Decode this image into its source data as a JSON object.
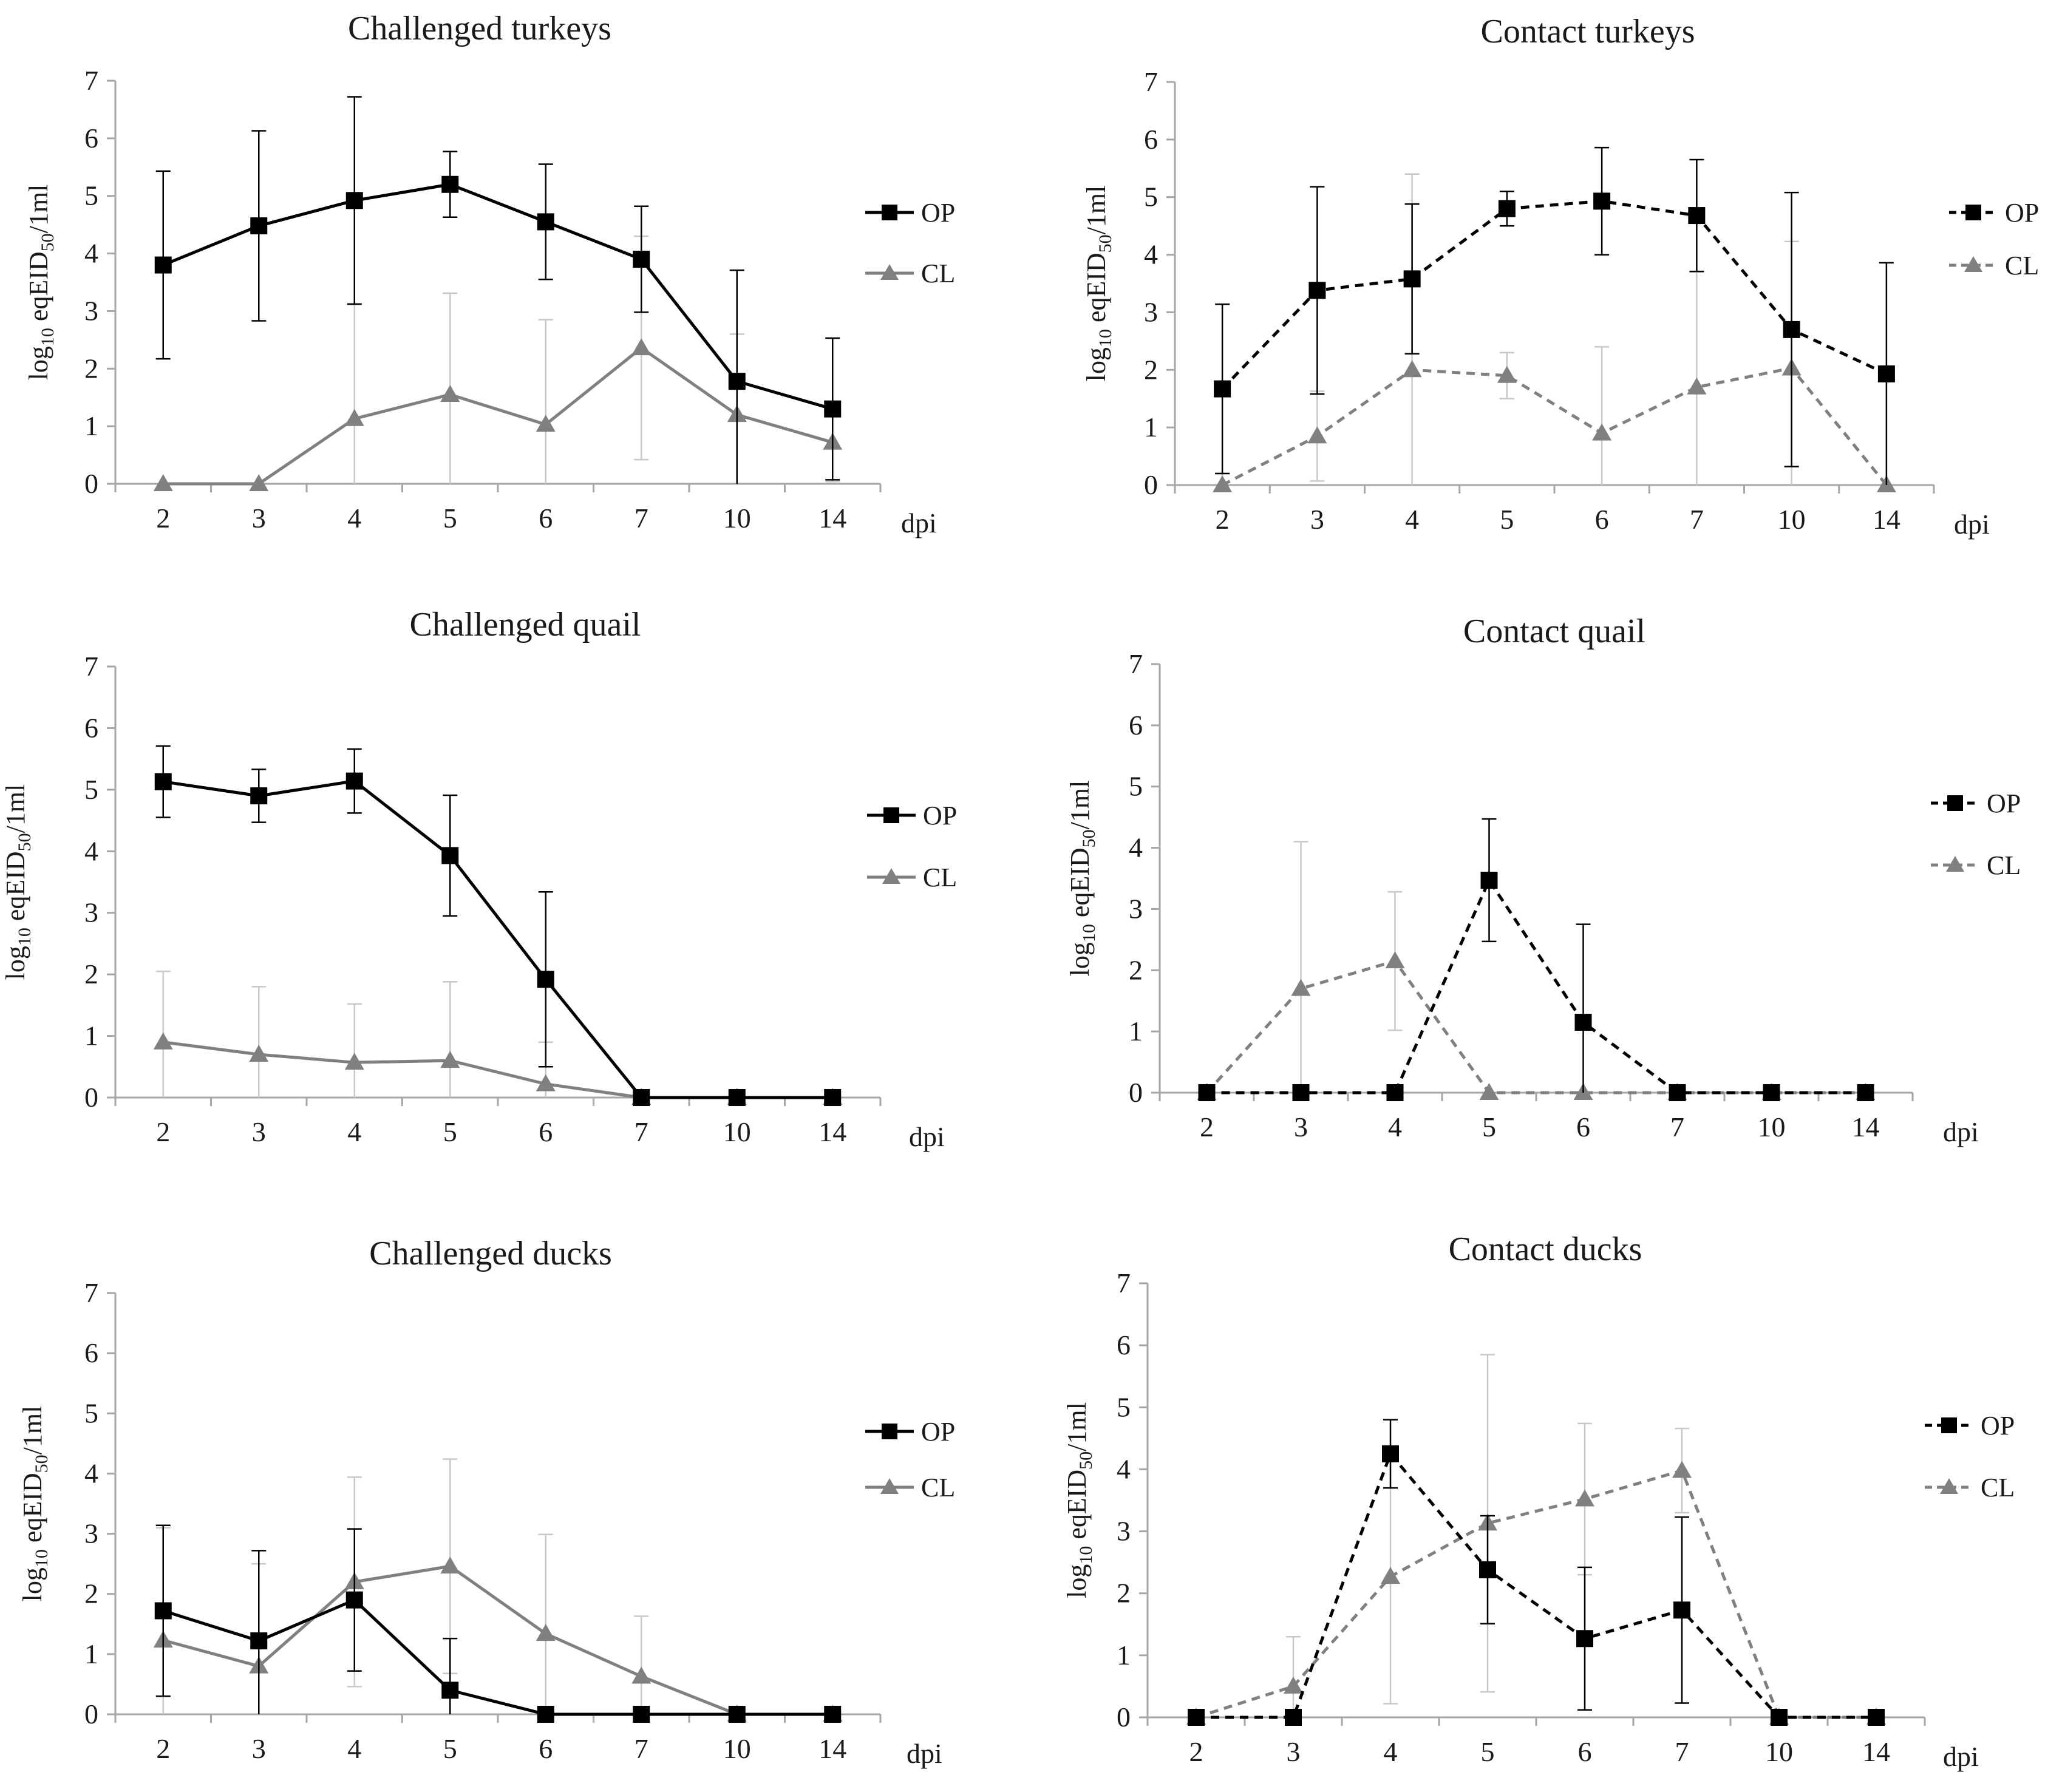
{
  "chart_data": [
    {
      "type": "line",
      "title": "Challenged turkeys",
      "ylabel": {
        "base": "log",
        "sub10": "10",
        "mid": " eqEID",
        "sub50": "50",
        "tail": "/1ml"
      },
      "xlabel": "dpi",
      "categories": [
        "2",
        "3",
        "4",
        "5",
        "6",
        "7",
        "10",
        "14"
      ],
      "ylim": [
        0,
        7
      ],
      "yticks": [
        "0",
        "1",
        "2",
        "3",
        "4",
        "5",
        "6",
        "7"
      ],
      "line_style": "solid",
      "legend_position": "right",
      "series": [
        {
          "name": "OP",
          "marker": "square",
          "color": "#000000",
          "values": [
            3.8,
            4.48,
            4.92,
            5.2,
            4.55,
            3.9,
            1.78,
            1.3
          ],
          "error": [
            1.63,
            1.65,
            1.8,
            0.57,
            1.0,
            0.92,
            1.93,
            1.23
          ]
        },
        {
          "name": "CL",
          "marker": "triangle",
          "color": "#808080",
          "values": [
            0,
            0,
            1.13,
            1.55,
            1.03,
            2.36,
            1.2,
            0.72
          ],
          "error": [
            0,
            0,
            2.0,
            1.76,
            1.82,
            1.94,
            1.4,
            0.68
          ]
        }
      ]
    },
    {
      "type": "line",
      "title": "Contact turkeys",
      "ylabel": {
        "base": "log",
        "sub10": "10",
        "mid": " eqEID",
        "sub50": "50",
        "tail": "/1ml"
      },
      "xlabel": "dpi",
      "categories": [
        "2",
        "3",
        "4",
        "5",
        "6",
        "7",
        "10",
        "14"
      ],
      "ylim": [
        0,
        7
      ],
      "yticks": [
        "0",
        "1",
        "2",
        "3",
        "4",
        "5",
        "6",
        "7"
      ],
      "line_style": "dashed",
      "legend_position": "right",
      "series": [
        {
          "name": "OP",
          "marker": "square",
          "color": "#000000",
          "values": [
            1.67,
            3.38,
            3.58,
            4.8,
            4.93,
            4.68,
            2.7,
            1.93
          ],
          "error": [
            1.47,
            1.8,
            1.3,
            0.3,
            0.93,
            0.97,
            2.38,
            1.93
          ]
        },
        {
          "name": "CL",
          "marker": "triangle",
          "color": "#808080",
          "values": [
            0,
            0.85,
            2.0,
            1.9,
            0.9,
            1.7,
            2.03,
            0
          ],
          "error": [
            0.2,
            0.78,
            3.4,
            0.4,
            1.5,
            2.0,
            2.2,
            0
          ]
        }
      ]
    },
    {
      "type": "line",
      "title": "Challenged quail",
      "ylabel": {
        "base": "log",
        "sub10": "10",
        "mid": " eqEID",
        "sub50": "50",
        "tail": "/1ml"
      },
      "xlabel": "dpi",
      "categories": [
        "2",
        "3",
        "4",
        "5",
        "6",
        "7",
        "10",
        "14"
      ],
      "ylim": [
        0,
        7
      ],
      "yticks": [
        "0",
        "1",
        "2",
        "3",
        "4",
        "5",
        "6",
        "7"
      ],
      "line_style": "solid",
      "legend_position": "right",
      "series": [
        {
          "name": "OP",
          "marker": "square",
          "color": "#000000",
          "values": [
            5.13,
            4.9,
            5.14,
            3.93,
            1.92,
            0,
            0,
            0
          ],
          "error": [
            0.58,
            0.43,
            0.52,
            0.98,
            1.42,
            0,
            0,
            0
          ]
        },
        {
          "name": "CL",
          "marker": "triangle",
          "color": "#808080",
          "values": [
            0.9,
            0.7,
            0.57,
            0.6,
            0.22,
            0,
            0,
            0
          ],
          "error": [
            1.15,
            1.1,
            0.95,
            1.28,
            0.68,
            0,
            0,
            0
          ]
        }
      ]
    },
    {
      "type": "line",
      "title": "Contact quail",
      "ylabel": {
        "base": "log",
        "sub10": "10",
        "mid": " eqEID",
        "sub50": "50",
        "tail": "/1ml"
      },
      "xlabel": "dpi",
      "categories": [
        "2",
        "3",
        "4",
        "5",
        "6",
        "7",
        "10",
        "14"
      ],
      "ylim": [
        0,
        7
      ],
      "yticks": [
        "0",
        "1",
        "2",
        "3",
        "4",
        "5",
        "6",
        "7"
      ],
      "line_style": "dashed",
      "legend_position": "right",
      "series": [
        {
          "name": "OP",
          "marker": "square",
          "color": "#000000",
          "values": [
            0,
            0,
            0,
            3.47,
            1.15,
            0,
            0,
            0
          ],
          "error": [
            0,
            0,
            0,
            1.0,
            1.6,
            0,
            0,
            0
          ]
        },
        {
          "name": "CL",
          "marker": "triangle",
          "color": "#808080",
          "values": [
            0,
            1.7,
            2.15,
            0,
            0,
            0,
            0,
            0
          ],
          "error": [
            0,
            2.4,
            1.13,
            0,
            0,
            0,
            0,
            0
          ]
        }
      ]
    },
    {
      "type": "line",
      "title": "Challenged ducks",
      "ylabel": {
        "base": "log",
        "sub10": "10",
        "mid": " eqEID",
        "sub50": "50",
        "tail": "/1ml"
      },
      "xlabel": "dpi",
      "categories": [
        "2",
        "3",
        "4",
        "5",
        "6",
        "7",
        "10",
        "14"
      ],
      "ylim": [
        0,
        7
      ],
      "yticks": [
        "0",
        "1",
        "2",
        "3",
        "4",
        "5",
        "6",
        "7"
      ],
      "line_style": "solid",
      "legend_position": "right",
      "series": [
        {
          "name": "OP",
          "marker": "square",
          "color": "#000000",
          "values": [
            1.72,
            1.22,
            1.9,
            0.4,
            0,
            0,
            0,
            0
          ],
          "error": [
            1.42,
            1.5,
            1.18,
            0.86,
            0,
            0,
            0,
            0
          ]
        },
        {
          "name": "CL",
          "marker": "triangle",
          "color": "#808080",
          "values": [
            1.23,
            0.8,
            2.2,
            2.46,
            1.34,
            0.63,
            0,
            0
          ],
          "error": [
            1.87,
            1.7,
            1.74,
            1.78,
            1.65,
            1.0,
            0,
            0
          ]
        }
      ]
    },
    {
      "type": "line",
      "title": "Contact ducks",
      "ylabel": {
        "base": "log",
        "sub10": "10",
        "mid": " eqEID",
        "sub50": "50",
        "tail": "/1ml"
      },
      "xlabel": "dpi",
      "categories": [
        "2",
        "3",
        "4",
        "5",
        "6",
        "7",
        "10",
        "14"
      ],
      "ylim": [
        0,
        7
      ],
      "yticks": [
        "0",
        "1",
        "2",
        "3",
        "4",
        "5",
        "6",
        "7"
      ],
      "line_style": "dashed",
      "legend_position": "right",
      "series": [
        {
          "name": "OP",
          "marker": "square",
          "color": "#000000",
          "values": [
            0,
            0,
            4.25,
            2.38,
            1.27,
            1.73,
            0,
            0
          ],
          "error": [
            0,
            0,
            0.55,
            0.87,
            1.15,
            1.5,
            0,
            0
          ]
        },
        {
          "name": "CL",
          "marker": "triangle",
          "color": "#808080",
          "values": [
            0,
            0.5,
            2.27,
            3.13,
            3.52,
            3.98,
            0,
            0
          ],
          "error": [
            0,
            0.8,
            2.05,
            2.72,
            1.22,
            0.68,
            0,
            0
          ]
        }
      ]
    }
  ]
}
